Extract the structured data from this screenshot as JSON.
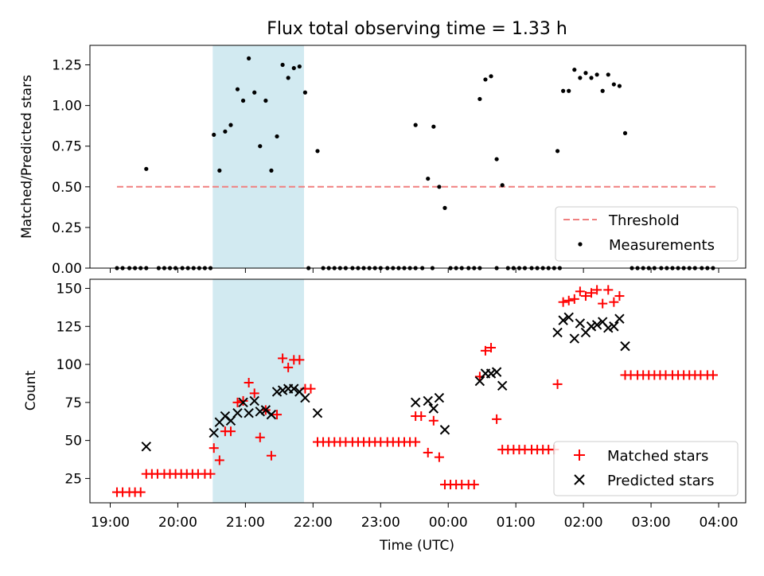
{
  "title": "Flux total observing time = 1.33 h",
  "chart_data": [
    {
      "type": "scatter",
      "ylabel": "Matched/Predicted stars",
      "xlabel": "",
      "xlim": [
        "18:42",
        "04:24"
      ],
      "ylim": [
        0,
        1.37
      ],
      "yticks": [
        0.0,
        0.25,
        0.5,
        0.75,
        1.0,
        1.25
      ],
      "ytick_labels": [
        "0.00",
        "0.25",
        "0.50",
        "0.75",
        "1.00",
        "1.25"
      ],
      "highlight_span": {
        "x0": "20:31",
        "x1": "21:52",
        "color": "#add8e6"
      },
      "legend_position": "lower right",
      "threshold": {
        "name": "Threshold",
        "value": 0.5,
        "x_from": "19:06",
        "x_to": "23:59 (+4:00)",
        "x_range": [
          "19:06",
          "03:59"
        ],
        "color": "#f08080",
        "style": "dashed"
      },
      "series": [
        {
          "name": "Measurements",
          "color": "#000000",
          "marker": "dot",
          "points": [
            [
              "19:06",
              0
            ],
            [
              "19:11",
              0
            ],
            [
              "19:17",
              0
            ],
            [
              "19:22",
              0
            ],
            [
              "19:27",
              0
            ],
            [
              "19:32",
              0
            ],
            [
              "19:43",
              0
            ],
            [
              "19:48",
              0
            ],
            [
              "19:53",
              0
            ],
            [
              "19:58",
              0
            ],
            [
              "20:04",
              0
            ],
            [
              "20:09",
              0
            ],
            [
              "20:14",
              0
            ],
            [
              "20:19",
              0
            ],
            [
              "20:24",
              0
            ],
            [
              "20:29",
              0
            ],
            [
              "19:32",
              0.61
            ],
            [
              "20:32",
              0.82
            ],
            [
              "20:37",
              0.6
            ],
            [
              "20:42",
              0.84
            ],
            [
              "20:47",
              0.88
            ],
            [
              "20:53",
              1.1
            ],
            [
              "20:58",
              1.03
            ],
            [
              "21:03",
              1.29
            ],
            [
              "21:08",
              1.08
            ],
            [
              "21:13",
              0.75
            ],
            [
              "21:18",
              1.03
            ],
            [
              "21:23",
              0.6
            ],
            [
              "21:28",
              0.81
            ],
            [
              "21:33",
              1.25
            ],
            [
              "21:38",
              1.17
            ],
            [
              "21:43",
              1.23
            ],
            [
              "21:48",
              1.24
            ],
            [
              "21:53",
              1.08
            ],
            [
              "21:56",
              0
            ],
            [
              "22:04",
              0.72
            ],
            [
              "22:09",
              0
            ],
            [
              "22:14",
              0
            ],
            [
              "22:19",
              0
            ],
            [
              "22:24",
              0
            ],
            [
              "22:29",
              0
            ],
            [
              "22:35",
              0
            ],
            [
              "22:40",
              0
            ],
            [
              "22:45",
              0
            ],
            [
              "22:50",
              0
            ],
            [
              "22:55",
              0
            ],
            [
              "23:00",
              0
            ],
            [
              "23:06",
              0
            ],
            [
              "23:11",
              0
            ],
            [
              "23:16",
              0
            ],
            [
              "23:21",
              0
            ],
            [
              "23:26",
              0
            ],
            [
              "23:31",
              0
            ],
            [
              "23:37",
              0
            ],
            [
              "23:46",
              0
            ],
            [
              "23:31",
              0.88
            ],
            [
              "23:42",
              0.55
            ],
            [
              "23:47",
              0.87
            ],
            [
              "23:52",
              0.5
            ],
            [
              "23:57",
              0.37
            ],
            [
              "00:02",
              0
            ],
            [
              "00:07",
              0
            ],
            [
              "00:12",
              0
            ],
            [
              "00:18",
              0
            ],
            [
              "00:23",
              0
            ],
            [
              "00:28",
              0
            ],
            [
              "00:28",
              1.04
            ],
            [
              "00:33",
              1.16
            ],
            [
              "00:38",
              1.18
            ],
            [
              "00:43",
              0.67
            ],
            [
              "00:48",
              0.51
            ],
            [
              "00:43",
              0
            ],
            [
              "00:53",
              0
            ],
            [
              "00:58",
              0
            ],
            [
              "01:03",
              0
            ],
            [
              "01:08",
              0
            ],
            [
              "01:14",
              0
            ],
            [
              "01:19",
              0
            ],
            [
              "01:24",
              0
            ],
            [
              "01:29",
              0
            ],
            [
              "01:34",
              0
            ],
            [
              "01:39",
              0
            ],
            [
              "01:37",
              0.72
            ],
            [
              "01:42",
              1.09
            ],
            [
              "01:47",
              1.09
            ],
            [
              "01:52",
              1.22
            ],
            [
              "01:57",
              1.17
            ],
            [
              "02:02",
              1.2
            ],
            [
              "02:07",
              1.17
            ],
            [
              "02:12",
              1.19
            ],
            [
              "02:17",
              1.09
            ],
            [
              "02:22",
              1.19
            ],
            [
              "02:27",
              1.13
            ],
            [
              "02:32",
              1.12
            ],
            [
              "02:37",
              0.83
            ],
            [
              "02:43",
              0
            ],
            [
              "02:48",
              0
            ],
            [
              "02:53",
              0
            ],
            [
              "02:58",
              0
            ],
            [
              "03:03",
              0
            ],
            [
              "03:09",
              0
            ],
            [
              "03:14",
              0
            ],
            [
              "03:19",
              0
            ],
            [
              "03:24",
              0
            ],
            [
              "03:29",
              0
            ],
            [
              "03:34",
              0
            ],
            [
              "03:39",
              0
            ],
            [
              "03:45",
              0
            ],
            [
              "03:50",
              0
            ],
            [
              "03:55",
              0
            ]
          ]
        }
      ]
    },
    {
      "type": "scatter",
      "ylabel": "Count",
      "xlabel": "Time (UTC)",
      "xlim": [
        "18:42",
        "04:24"
      ],
      "ylim": [
        9,
        156
      ],
      "yticks": [
        25,
        50,
        75,
        100,
        125,
        150
      ],
      "xtick_labels": [
        "19:00",
        "20:00",
        "21:00",
        "22:00",
        "23:00",
        "00:00",
        "01:00",
        "02:00",
        "03:00",
        "04:00"
      ],
      "highlight_span": {
        "x0": "20:31",
        "x1": "21:52",
        "color": "#add8e6"
      },
      "legend_position": "lower right",
      "series": [
        {
          "name": "Matched stars",
          "color": "#ff0000",
          "marker": "plus",
          "points": [
            [
              "19:06",
              16
            ],
            [
              "19:11",
              16
            ],
            [
              "19:17",
              16
            ],
            [
              "19:22",
              16
            ],
            [
              "19:27",
              16
            ],
            [
              "19:32",
              28
            ],
            [
              "19:37",
              28
            ],
            [
              "19:42",
              28
            ],
            [
              "19:48",
              28
            ],
            [
              "19:53",
              28
            ],
            [
              "19:58",
              28
            ],
            [
              "20:03",
              28
            ],
            [
              "20:08",
              28
            ],
            [
              "20:13",
              28
            ],
            [
              "20:18",
              28
            ],
            [
              "20:24",
              28
            ],
            [
              "20:29",
              28
            ],
            [
              "20:32",
              45
            ],
            [
              "20:37",
              37
            ],
            [
              "20:42",
              56
            ],
            [
              "20:47",
              56
            ],
            [
              "20:53",
              75
            ],
            [
              "20:58",
              76
            ],
            [
              "21:03",
              88
            ],
            [
              "21:08",
              81
            ],
            [
              "21:13",
              52
            ],
            [
              "21:18",
              70
            ],
            [
              "21:23",
              40
            ],
            [
              "21:28",
              67
            ],
            [
              "21:33",
              104
            ],
            [
              "21:38",
              98
            ],
            [
              "21:43",
              103
            ],
            [
              "21:48",
              103
            ],
            [
              "21:53",
              84
            ],
            [
              "21:58",
              84
            ],
            [
              "22:04",
              49
            ],
            [
              "22:09",
              49
            ],
            [
              "22:14",
              49
            ],
            [
              "22:19",
              49
            ],
            [
              "22:24",
              49
            ],
            [
              "22:29",
              49
            ],
            [
              "22:35",
              49
            ],
            [
              "22:40",
              49
            ],
            [
              "22:45",
              49
            ],
            [
              "22:50",
              49
            ],
            [
              "22:55",
              49
            ],
            [
              "23:00",
              49
            ],
            [
              "23:06",
              49
            ],
            [
              "23:11",
              49
            ],
            [
              "23:16",
              49
            ],
            [
              "23:21",
              49
            ],
            [
              "23:26",
              49
            ],
            [
              "23:31",
              49
            ],
            [
              "23:31",
              66
            ],
            [
              "23:36",
              66
            ],
            [
              "23:42",
              42
            ],
            [
              "23:47",
              63
            ],
            [
              "23:52",
              39
            ],
            [
              "23:57",
              21
            ],
            [
              "00:02",
              21
            ],
            [
              "00:07",
              21
            ],
            [
              "00:12",
              21
            ],
            [
              "00:18",
              21
            ],
            [
              "00:23",
              21
            ],
            [
              "00:28",
              92
            ],
            [
              "00:33",
              109
            ],
            [
              "00:38",
              111
            ],
            [
              "00:43",
              64
            ],
            [
              "00:48",
              44
            ],
            [
              "00:53",
              44
            ],
            [
              "00:58",
              44
            ],
            [
              "01:03",
              44
            ],
            [
              "01:08",
              44
            ],
            [
              "01:14",
              44
            ],
            [
              "01:19",
              44
            ],
            [
              "01:24",
              44
            ],
            [
              "01:29",
              44
            ],
            [
              "01:34",
              44
            ],
            [
              "01:37",
              87
            ],
            [
              "01:42",
              141
            ],
            [
              "01:47",
              142
            ],
            [
              "01:52",
              143
            ],
            [
              "01:57",
              148
            ],
            [
              "02:02",
              145
            ],
            [
              "02:07",
              147
            ],
            [
              "02:12",
              149
            ],
            [
              "02:17",
              140
            ],
            [
              "02:22",
              149
            ],
            [
              "02:27",
              141
            ],
            [
              "02:32",
              145
            ],
            [
              "02:37",
              93
            ],
            [
              "02:42",
              93
            ],
            [
              "02:48",
              93
            ],
            [
              "02:53",
              93
            ],
            [
              "02:58",
              93
            ],
            [
              "03:03",
              93
            ],
            [
              "03:08",
              93
            ],
            [
              "03:13",
              93
            ],
            [
              "03:19",
              93
            ],
            [
              "03:24",
              93
            ],
            [
              "03:29",
              93
            ],
            [
              "03:34",
              93
            ],
            [
              "03:39",
              93
            ],
            [
              "03:44",
              93
            ],
            [
              "03:50",
              93
            ],
            [
              "03:55",
              93
            ]
          ]
        },
        {
          "name": "Predicted stars",
          "color": "#000000",
          "marker": "x",
          "points": [
            [
              "19:32",
              46
            ],
            [
              "20:32",
              55
            ],
            [
              "20:37",
              62
            ],
            [
              "20:42",
              66
            ],
            [
              "20:47",
              63
            ],
            [
              "20:53",
              68
            ],
            [
              "20:58",
              75
            ],
            [
              "21:03",
              68
            ],
            [
              "21:08",
              76
            ],
            [
              "21:13",
              69
            ],
            [
              "21:18",
              70
            ],
            [
              "21:23",
              67
            ],
            [
              "21:28",
              82
            ],
            [
              "21:33",
              83
            ],
            [
              "21:38",
              84
            ],
            [
              "21:43",
              84
            ],
            [
              "21:48",
              82
            ],
            [
              "21:53",
              78
            ],
            [
              "22:04",
              68
            ],
            [
              "23:31",
              75
            ],
            [
              "23:42",
              76
            ],
            [
              "23:47",
              71
            ],
            [
              "23:52",
              78
            ],
            [
              "23:57",
              57
            ],
            [
              "00:28",
              89
            ],
            [
              "00:33",
              94
            ],
            [
              "00:38",
              94
            ],
            [
              "00:43",
              95
            ],
            [
              "00:48",
              86
            ],
            [
              "01:37",
              121
            ],
            [
              "01:42",
              129
            ],
            [
              "01:47",
              131
            ],
            [
              "01:52",
              117
            ],
            [
              "01:57",
              127
            ],
            [
              "02:02",
              121
            ],
            [
              "02:07",
              125
            ],
            [
              "02:12",
              126
            ],
            [
              "02:17",
              128
            ],
            [
              "02:22",
              124
            ],
            [
              "02:27",
              125
            ],
            [
              "02:32",
              130
            ],
            [
              "02:37",
              112
            ]
          ]
        }
      ]
    }
  ]
}
